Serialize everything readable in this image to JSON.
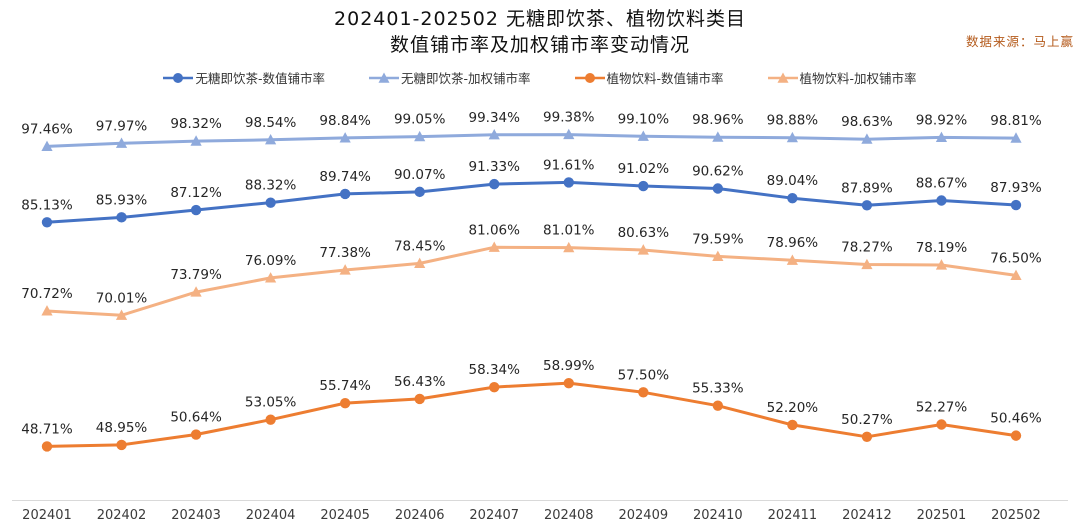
{
  "page": {
    "title_line1": "202401-202502 无糖即饮茶、植物饮料类目",
    "title_line2": "数值铺市率及加权铺市率变动情况",
    "source": "数据来源：马上赢"
  },
  "colors": {
    "source_text": "#B45A1B",
    "axis_line": "#D9D9D9",
    "label_text": "#262626"
  },
  "chart_data": {
    "type": "line",
    "title": "202401-202502 无糖即饮茶、植物饮料类目 数值铺市率及加权铺市率变动情况",
    "xlabel": "",
    "ylabel": "",
    "ylim": [
      40,
      105
    ],
    "grid": false,
    "legend_position": "top",
    "label_format": "percent_2dp",
    "categories": [
      "202401",
      "202402",
      "202403",
      "202404",
      "202405",
      "202406",
      "202407",
      "202408",
      "202409",
      "202410",
      "202411",
      "202412",
      "202501",
      "202502"
    ],
    "series": [
      {
        "name": "无糖即饮茶-数值铺市率",
        "marker": "circle",
        "color": "#4472C4",
        "values": [
          85.13,
          85.93,
          87.12,
          88.32,
          89.74,
          90.07,
          91.33,
          91.61,
          91.02,
          90.62,
          89.04,
          87.89,
          88.67,
          87.93
        ]
      },
      {
        "name": "无糖即饮茶-加权铺市率",
        "marker": "triangle",
        "color": "#8FAADC",
        "values": [
          97.46,
          97.97,
          98.32,
          98.54,
          98.84,
          99.05,
          99.34,
          99.38,
          99.1,
          98.96,
          98.88,
          98.63,
          98.92,
          98.81
        ]
      },
      {
        "name": "植物饮料-数值铺市率",
        "marker": "circle",
        "color": "#ED7D31",
        "values": [
          48.71,
          48.95,
          50.64,
          53.05,
          55.74,
          56.43,
          58.34,
          58.99,
          57.5,
          55.33,
          52.2,
          50.27,
          52.27,
          50.46
        ]
      },
      {
        "name": "植物饮料-加权铺市率",
        "marker": "triangle",
        "color": "#F4B183",
        "values": [
          70.72,
          70.01,
          73.79,
          76.09,
          77.38,
          78.45,
          81.06,
          81.01,
          80.63,
          79.59,
          78.96,
          78.27,
          78.19,
          76.5
        ]
      }
    ]
  }
}
